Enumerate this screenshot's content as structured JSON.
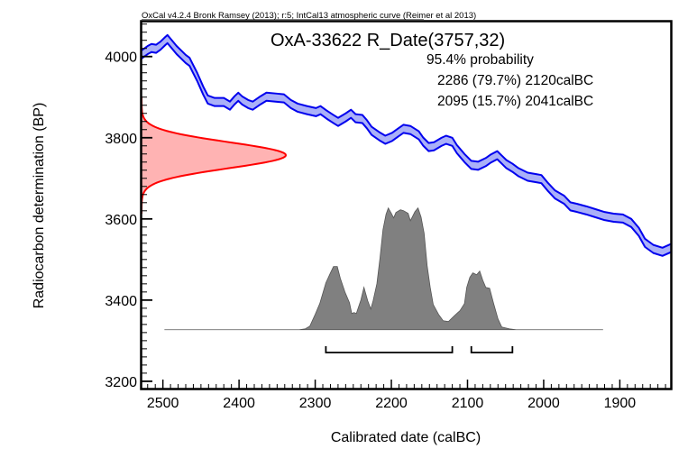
{
  "chart_data": {
    "type": "area",
    "header_note": "OxCal v4.2.4 Bronk Ramsey (2013); r:5; IntCal13 atmospheric curve (Reimer et al 2013)",
    "title": "OxA-33622 R_Date(3757,32)",
    "probability_label": "95.4% probability",
    "ranges": [
      {
        "text": "2286 (79.7%) 2120calBC",
        "from": 2286,
        "to": 2120,
        "percent": 79.7
      },
      {
        "text": "2095 (15.7%) 2041calBC",
        "from": 2095,
        "to": 2041,
        "percent": 15.7
      }
    ],
    "xlabel": "Calibrated date (calBC)",
    "ylabel": "Radiocarbon determination (BP)",
    "xlim": [
      2528,
      1833
    ],
    "ylim": [
      3182,
      4086
    ],
    "x_ticks": [
      "2500",
      "2400",
      "2300",
      "2200",
      "2100",
      "2000",
      "1900"
    ],
    "x_tick_values": [
      2500,
      2400,
      2300,
      2200,
      2100,
      2000,
      1900
    ],
    "y_ticks": [
      "3200",
      "3400",
      "3600",
      "3800",
      "4000"
    ],
    "y_tick_values": [
      3200,
      3400,
      3600,
      3800,
      4000
    ],
    "radiocarbon_date": {
      "mean": 3757,
      "sigma": 32
    },
    "calibration_curve": {
      "name": "IntCal13",
      "years": [
        2528,
        2520,
        2515,
        2509,
        2503,
        2497,
        2494,
        2490,
        2482,
        2476,
        2470,
        2465,
        2461,
        2455,
        2447,
        2441,
        2432,
        2420,
        2412,
        2406,
        2401,
        2396,
        2388,
        2382,
        2372,
        2364,
        2352,
        2341,
        2332,
        2323,
        2311,
        2299,
        2293,
        2285,
        2276,
        2270,
        2260,
        2253,
        2247,
        2238,
        2232,
        2226,
        2216,
        2208,
        2199,
        2191,
        2184,
        2175,
        2164,
        2158,
        2151,
        2144,
        2134,
        2128,
        2120,
        2114,
        2104,
        2095,
        2086,
        2076,
        2070,
        2061,
        2055,
        2049,
        2041,
        2033,
        2021,
        2009,
        2003,
        1995,
        1985,
        1973,
        1965,
        1956,
        1944,
        1932,
        1920,
        1908,
        1896,
        1885,
        1875,
        1867,
        1856,
        1844,
        1833
      ],
      "upper_bp": [
        4015,
        4026,
        4031,
        4029,
        4037,
        4048,
        4053,
        4044,
        4026,
        4015,
        4004,
        3997,
        3982,
        3960,
        3926,
        3904,
        3898,
        3898,
        3889,
        3902,
        3911,
        3902,
        3893,
        3889,
        3902,
        3911,
        3909,
        3907,
        3893,
        3884,
        3878,
        3873,
        3878,
        3867,
        3856,
        3849,
        3860,
        3869,
        3858,
        3856,
        3843,
        3827,
        3814,
        3805,
        3812,
        3823,
        3832,
        3829,
        3816,
        3800,
        3787,
        3789,
        3800,
        3805,
        3800,
        3782,
        3760,
        3743,
        3741,
        3750,
        3758,
        3767,
        3756,
        3745,
        3736,
        3725,
        3714,
        3710,
        3708,
        3690,
        3670,
        3657,
        3641,
        3637,
        3631,
        3624,
        3617,
        3613,
        3611,
        3600,
        3578,
        3551,
        3536,
        3529,
        3538
      ]
    },
    "posterior": {
      "years": [
        2498,
        2321,
        2313,
        2307,
        2300,
        2294,
        2286,
        2280,
        2276,
        2271,
        2267,
        2261,
        2255,
        2252,
        2249,
        2246,
        2240,
        2236,
        2231,
        2227,
        2224,
        2219,
        2215,
        2211,
        2207,
        2204,
        2200,
        2197,
        2194,
        2188,
        2184,
        2178,
        2175,
        2169,
        2165,
        2161,
        2157,
        2153,
        2149,
        2145,
        2138,
        2132,
        2125,
        2118,
        2110,
        2104,
        2101,
        2097,
        2093,
        2088,
        2084,
        2080,
        2076,
        2071,
        2066,
        2060,
        2055,
        2045,
        2036,
        1922
      ],
      "relative_probability": [
        0.0,
        0.0,
        0.007,
        0.03,
        0.126,
        0.215,
        0.385,
        0.467,
        0.519,
        0.519,
        0.422,
        0.311,
        0.222,
        0.133,
        0.141,
        0.133,
        0.244,
        0.348,
        0.237,
        0.17,
        0.237,
        0.378,
        0.585,
        0.822,
        0.948,
        1.0,
        0.956,
        0.919,
        0.963,
        0.985,
        0.978,
        0.956,
        0.896,
        0.97,
        1.0,
        0.926,
        0.793,
        0.526,
        0.348,
        0.207,
        0.126,
        0.074,
        0.067,
        0.111,
        0.156,
        0.215,
        0.348,
        0.43,
        0.467,
        0.452,
        0.482,
        0.407,
        0.348,
        0.341,
        0.222,
        0.089,
        0.022,
        0.007,
        0.0,
        0.0
      ]
    },
    "colors": {
      "curve_stroke": "#0000ee",
      "curve_fill": "#aab0f8",
      "date_stroke": "#ff0000",
      "date_fill": "#ffb3b3",
      "posterior_fill": "#808080"
    }
  }
}
